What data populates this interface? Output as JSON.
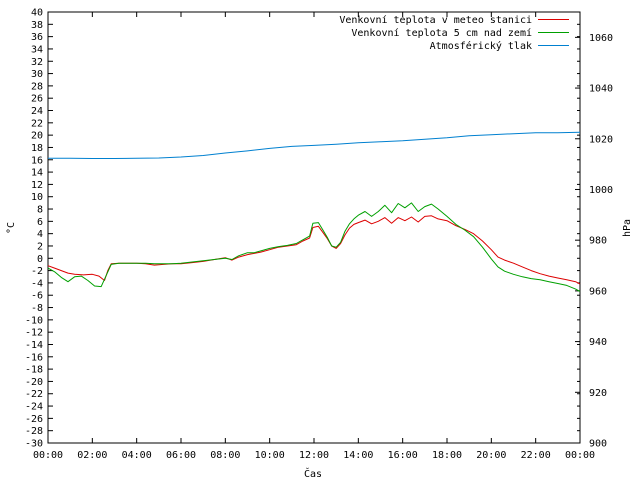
{
  "chart_data": {
    "type": "line",
    "xlabel": "Čas",
    "ylabel": "°C",
    "y2label": "hPa",
    "ylim": [
      -30,
      40
    ],
    "y2lim": [
      900,
      1070
    ],
    "xlim": [
      "00:00",
      "24:00"
    ],
    "grid": false,
    "legend_position": "top-right",
    "x_ticks": [
      "00:00",
      "02:00",
      "04:00",
      "06:00",
      "08:00",
      "10:00",
      "12:00",
      "14:00",
      "16:00",
      "18:00",
      "20:00",
      "22:00",
      "00:00"
    ],
    "y_ticks": [
      40,
      38,
      36,
      34,
      32,
      30,
      28,
      26,
      24,
      22,
      20,
      18,
      16,
      14,
      12,
      10,
      8,
      6,
      4,
      2,
      0,
      -2,
      -4,
      -6,
      -8,
      -10,
      -12,
      -14,
      -16,
      -18,
      -20,
      -22,
      -24,
      -26,
      -28,
      -30
    ],
    "y2_ticks": [
      1060,
      1040,
      1020,
      1000,
      980,
      960,
      940,
      920,
      900
    ],
    "series": [
      {
        "name": "Venkovní teplota v meteo stanici",
        "color": "#dd0000",
        "axis": "left",
        "points": [
          [
            0.0,
            -1.2
          ],
          [
            0.3,
            -1.6
          ],
          [
            0.6,
            -2.0
          ],
          [
            0.9,
            -2.4
          ],
          [
            1.2,
            -2.6
          ],
          [
            1.6,
            -2.7
          ],
          [
            2.0,
            -2.6
          ],
          [
            2.3,
            -2.9
          ],
          [
            2.55,
            -3.6
          ],
          [
            2.7,
            -2.0
          ],
          [
            2.85,
            -0.9
          ],
          [
            3.2,
            -0.8
          ],
          [
            3.6,
            -0.8
          ],
          [
            4.0,
            -0.8
          ],
          [
            4.4,
            -0.9
          ],
          [
            4.8,
            -1.1
          ],
          [
            5.2,
            -1.0
          ],
          [
            5.6,
            -0.9
          ],
          [
            6.0,
            -0.9
          ],
          [
            6.5,
            -0.7
          ],
          [
            7.0,
            -0.5
          ],
          [
            7.5,
            -0.2
          ],
          [
            8.0,
            0.1
          ],
          [
            8.3,
            -0.3
          ],
          [
            8.6,
            0.2
          ],
          [
            9.0,
            0.6
          ],
          [
            9.3,
            0.8
          ],
          [
            9.6,
            1.0
          ],
          [
            10.0,
            1.4
          ],
          [
            10.4,
            1.8
          ],
          [
            10.8,
            2.0
          ],
          [
            11.2,
            2.2
          ],
          [
            11.5,
            2.8
          ],
          [
            11.8,
            3.3
          ],
          [
            11.95,
            5.0
          ],
          [
            12.2,
            5.2
          ],
          [
            12.4,
            4.2
          ],
          [
            12.6,
            3.2
          ],
          [
            12.8,
            2.0
          ],
          [
            13.0,
            1.6
          ],
          [
            13.2,
            2.4
          ],
          [
            13.4,
            3.8
          ],
          [
            13.6,
            4.9
          ],
          [
            13.8,
            5.5
          ],
          [
            14.0,
            5.8
          ],
          [
            14.3,
            6.2
          ],
          [
            14.6,
            5.6
          ],
          [
            14.9,
            6.0
          ],
          [
            15.2,
            6.6
          ],
          [
            15.5,
            5.7
          ],
          [
            15.8,
            6.6
          ],
          [
            16.1,
            6.1
          ],
          [
            16.4,
            6.7
          ],
          [
            16.7,
            5.9
          ],
          [
            17.0,
            6.8
          ],
          [
            17.3,
            6.9
          ],
          [
            17.6,
            6.4
          ],
          [
            18.0,
            6.1
          ],
          [
            18.4,
            5.3
          ],
          [
            18.8,
            4.7
          ],
          [
            19.2,
            4.0
          ],
          [
            19.6,
            2.8
          ],
          [
            20.0,
            1.4
          ],
          [
            20.3,
            0.2
          ],
          [
            20.6,
            -0.3
          ],
          [
            21.0,
            -0.8
          ],
          [
            21.4,
            -1.4
          ],
          [
            21.8,
            -2.0
          ],
          [
            22.2,
            -2.5
          ],
          [
            22.6,
            -2.9
          ],
          [
            23.0,
            -3.2
          ],
          [
            23.4,
            -3.5
          ],
          [
            23.8,
            -3.8
          ],
          [
            24.0,
            -4.2
          ]
        ]
      },
      {
        "name": "Venkovní teplota 5 cm nad zemí",
        "color": "#00a000",
        "axis": "left",
        "points": [
          [
            0.0,
            -1.6
          ],
          [
            0.3,
            -2.2
          ],
          [
            0.6,
            -3.1
          ],
          [
            0.9,
            -3.8
          ],
          [
            1.2,
            -3.0
          ],
          [
            1.5,
            -2.9
          ],
          [
            1.8,
            -3.6
          ],
          [
            2.1,
            -4.5
          ],
          [
            2.4,
            -4.6
          ],
          [
            2.6,
            -3.0
          ],
          [
            2.85,
            -1.0
          ],
          [
            3.2,
            -0.8
          ],
          [
            3.6,
            -0.8
          ],
          [
            4.0,
            -0.8
          ],
          [
            4.4,
            -0.8
          ],
          [
            4.8,
            -0.9
          ],
          [
            5.2,
            -0.9
          ],
          [
            5.6,
            -0.9
          ],
          [
            6.0,
            -0.8
          ],
          [
            6.5,
            -0.6
          ],
          [
            7.0,
            -0.4
          ],
          [
            7.5,
            -0.2
          ],
          [
            8.0,
            0.0
          ],
          [
            8.3,
            -0.2
          ],
          [
            8.6,
            0.4
          ],
          [
            9.0,
            0.9
          ],
          [
            9.3,
            0.9
          ],
          [
            9.6,
            1.2
          ],
          [
            10.0,
            1.6
          ],
          [
            10.4,
            1.9
          ],
          [
            10.8,
            2.1
          ],
          [
            11.2,
            2.4
          ],
          [
            11.5,
            3.0
          ],
          [
            11.8,
            3.6
          ],
          [
            11.95,
            5.7
          ],
          [
            12.2,
            5.8
          ],
          [
            12.4,
            4.6
          ],
          [
            12.6,
            3.4
          ],
          [
            12.8,
            2.0
          ],
          [
            13.0,
            1.8
          ],
          [
            13.2,
            2.6
          ],
          [
            13.4,
            4.4
          ],
          [
            13.6,
            5.6
          ],
          [
            13.8,
            6.4
          ],
          [
            14.0,
            7.0
          ],
          [
            14.3,
            7.6
          ],
          [
            14.6,
            6.8
          ],
          [
            14.9,
            7.6
          ],
          [
            15.2,
            8.6
          ],
          [
            15.5,
            7.4
          ],
          [
            15.8,
            8.9
          ],
          [
            16.1,
            8.2
          ],
          [
            16.4,
            9.0
          ],
          [
            16.7,
            7.6
          ],
          [
            17.0,
            8.4
          ],
          [
            17.3,
            8.8
          ],
          [
            17.6,
            8.0
          ],
          [
            18.0,
            6.8
          ],
          [
            18.4,
            5.5
          ],
          [
            18.8,
            4.6
          ],
          [
            19.2,
            3.5
          ],
          [
            19.6,
            1.8
          ],
          [
            20.0,
            -0.1
          ],
          [
            20.3,
            -1.4
          ],
          [
            20.6,
            -2.1
          ],
          [
            21.0,
            -2.6
          ],
          [
            21.4,
            -3.0
          ],
          [
            21.8,
            -3.3
          ],
          [
            22.2,
            -3.5
          ],
          [
            22.6,
            -3.8
          ],
          [
            23.0,
            -4.1
          ],
          [
            23.4,
            -4.4
          ],
          [
            23.8,
            -5.0
          ],
          [
            24.0,
            -5.4
          ]
        ]
      },
      {
        "name": "Atmosférický tlak",
        "color": "#0080d0",
        "axis": "right",
        "points": [
          [
            0.0,
            1012.3
          ],
          [
            1.0,
            1012.3
          ],
          [
            2.0,
            1012.2
          ],
          [
            3.0,
            1012.2
          ],
          [
            4.0,
            1012.3
          ],
          [
            5.0,
            1012.4
          ],
          [
            6.0,
            1012.8
          ],
          [
            7.0,
            1013.4
          ],
          [
            8.0,
            1014.4
          ],
          [
            9.0,
            1015.2
          ],
          [
            10.0,
            1016.2
          ],
          [
            11.0,
            1017.0
          ],
          [
            12.0,
            1017.4
          ],
          [
            13.0,
            1017.8
          ],
          [
            14.0,
            1018.4
          ],
          [
            15.0,
            1018.8
          ],
          [
            16.0,
            1019.2
          ],
          [
            17.0,
            1019.8
          ],
          [
            18.0,
            1020.4
          ],
          [
            19.0,
            1021.2
          ],
          [
            20.0,
            1021.6
          ],
          [
            21.0,
            1022.0
          ],
          [
            22.0,
            1022.4
          ],
          [
            23.0,
            1022.4
          ],
          [
            24.0,
            1022.6
          ]
        ]
      }
    ]
  }
}
